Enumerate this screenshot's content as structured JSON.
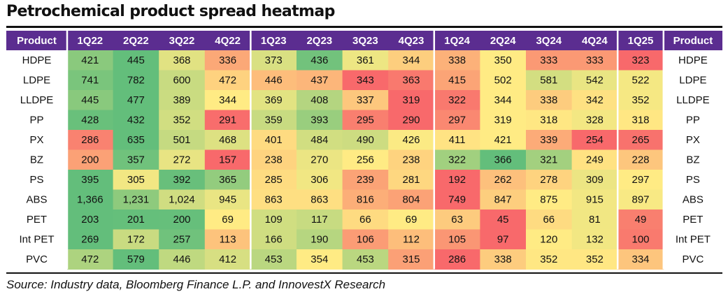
{
  "title": "Petrochemical product spread heatmap",
  "source": "Source: Industry data, Bloomberg Finance L.P. and InnovestX Research",
  "colors": {
    "header_bg": "#5b2d90",
    "header_text": "#ffffff",
    "scale_low": "#f8696b",
    "scale_mid": "#ffeb84",
    "scale_high": "#63be7b"
  },
  "chart_data": {
    "type": "heatmap",
    "title": "Petrochemical product spread heatmap",
    "row_header_label": "Product",
    "color_scale": "per-row, red (low) - yellow (mid) - green (high)",
    "columns": [
      "1Q22",
      "2Q22",
      "3Q22",
      "4Q22",
      "1Q23",
      "2Q23",
      "3Q23",
      "4Q23",
      "1Q24",
      "2Q24",
      "3Q24",
      "4Q24",
      "1Q25"
    ],
    "column_groups": [
      [
        "1Q22",
        "2Q22",
        "3Q22",
        "4Q22"
      ],
      [
        "1Q23",
        "2Q23",
        "3Q23",
        "4Q23"
      ],
      [
        "1Q24",
        "2Q24",
        "3Q24",
        "4Q24"
      ],
      [
        "1Q25"
      ]
    ],
    "rows": [
      {
        "product": "HDPE",
        "values": [
          421,
          445,
          368,
          336,
          373,
          436,
          361,
          344,
          338,
          350,
          333,
          333,
          323
        ]
      },
      {
        "product": "LDPE",
        "values": [
          741,
          782,
          600,
          472,
          446,
          437,
          343,
          363,
          415,
          502,
          581,
          542,
          522
        ]
      },
      {
        "product": "LLDPE",
        "values": [
          445,
          477,
          389,
          344,
          369,
          408,
          337,
          319,
          322,
          344,
          338,
          342,
          352
        ]
      },
      {
        "product": "PP",
        "values": [
          428,
          432,
          352,
          291,
          359,
          393,
          295,
          290,
          297,
          319,
          318,
          328,
          318
        ]
      },
      {
        "product": "PX",
        "values": [
          286,
          635,
          501,
          468,
          401,
          484,
          490,
          426,
          411,
          421,
          339,
          254,
          265
        ]
      },
      {
        "product": "BZ",
        "values": [
          200,
          357,
          272,
          157,
          238,
          270,
          256,
          238,
          322,
          366,
          321,
          249,
          228
        ]
      },
      {
        "product": "PS",
        "values": [
          395,
          305,
          392,
          365,
          285,
          306,
          239,
          281,
          192,
          262,
          278,
          309,
          297
        ]
      },
      {
        "product": "ABS",
        "values": [
          1366,
          1231,
          1024,
          945,
          863,
          863,
          816,
          804,
          749,
          847,
          875,
          915,
          897
        ]
      },
      {
        "product": "PET",
        "values": [
          203,
          201,
          200,
          69,
          109,
          117,
          66,
          69,
          63,
          45,
          66,
          81,
          49
        ]
      },
      {
        "product": "Int PET",
        "values": [
          269,
          172,
          257,
          113,
          166,
          190,
          106,
          112,
          105,
          97,
          120,
          132,
          100
        ]
      },
      {
        "product": "PVC",
        "values": [
          472,
          579,
          446,
          412,
          453,
          354,
          453,
          315,
          286,
          338,
          352,
          352,
          334
        ]
      }
    ]
  }
}
